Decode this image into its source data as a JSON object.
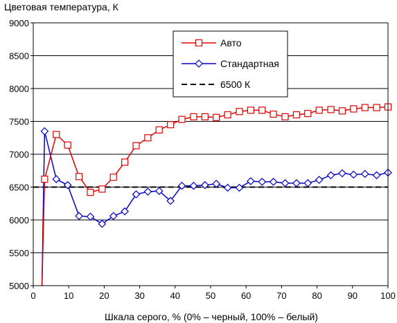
{
  "chart_data": {
    "type": "line",
    "title": "",
    "ylabel": "Цветовая температура, К",
    "xlabel": "Шкала серого, % (0% – черный, 100% – белый)",
    "xlim": [
      0,
      100
    ],
    "ylim": [
      5000,
      9000
    ],
    "xticks": [
      0,
      10,
      20,
      30,
      40,
      50,
      60,
      70,
      80,
      90,
      100
    ],
    "yticks": [
      5000,
      5500,
      6000,
      6500,
      7000,
      7500,
      8000,
      8500,
      9000
    ],
    "grid": "horizontal",
    "legend_position": "top-right",
    "series": [
      {
        "name": "Авто",
        "color": "#e00000",
        "marker": "square",
        "x": [
          3.2,
          6.5,
          9.7,
          12.9,
          16.1,
          19.4,
          22.6,
          25.8,
          29.0,
          32.3,
          35.5,
          38.7,
          41.9,
          45.2,
          48.4,
          51.6,
          54.8,
          58.1,
          61.3,
          64.5,
          67.7,
          71.0,
          74.2,
          77.4,
          80.6,
          83.9,
          87.1,
          90.3,
          93.5,
          96.8,
          100
        ],
        "y": [
          6620,
          7300,
          7140,
          6660,
          6420,
          6470,
          6650,
          6880,
          7130,
          7250,
          7370,
          7450,
          7530,
          7570,
          7570,
          7560,
          7600,
          7650,
          7670,
          7670,
          7610,
          7570,
          7600,
          7620,
          7670,
          7680,
          7660,
          7690,
          7710,
          7710,
          7720
        ]
      },
      {
        "name": "Стандартная",
        "color": "#0000c8",
        "marker": "diamond",
        "x": [
          3.2,
          6.5,
          9.7,
          12.9,
          16.1,
          19.4,
          22.6,
          25.8,
          29.0,
          32.3,
          35.5,
          38.7,
          41.9,
          45.2,
          48.4,
          51.6,
          54.8,
          58.1,
          61.3,
          64.5,
          67.7,
          71.0,
          74.2,
          77.4,
          80.6,
          83.9,
          87.1,
          90.3,
          93.5,
          96.8,
          100
        ],
        "y": [
          7350,
          6620,
          6530,
          6060,
          6050,
          5940,
          6060,
          6130,
          6390,
          6430,
          6440,
          6290,
          6520,
          6520,
          6530,
          6550,
          6490,
          6490,
          6590,
          6580,
          6580,
          6560,
          6560,
          6560,
          6610,
          6680,
          6710,
          6690,
          6700,
          6680,
          6720
        ]
      },
      {
        "name": "6500 К",
        "color": "#000000",
        "marker": "none",
        "dash": true,
        "x": [
          0,
          100
        ],
        "y": [
          6500,
          6500
        ]
      }
    ]
  }
}
